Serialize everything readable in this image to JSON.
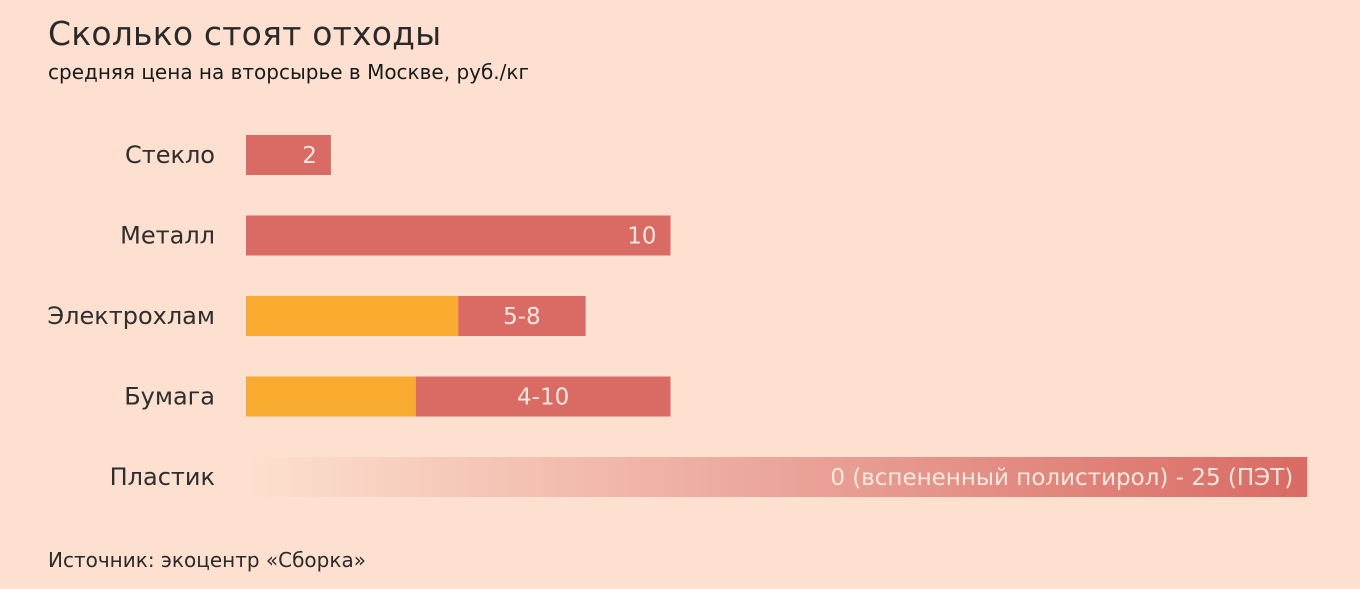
{
  "title": "Сколько стоят отходы",
  "subtitle": "средняя цена на вторсырье в Москве, руб./кг",
  "source": "Источник: экоцентр «Сборка»",
  "colors": {
    "background": "#fde0cf",
    "bar": "#d96a64",
    "bar_min": "#f9ab30"
  },
  "chart_data": {
    "type": "bar",
    "orientation": "horizontal",
    "categories": [
      "Стекло",
      "Металл",
      "Электрохлам",
      "Бумага",
      "Пластик"
    ],
    "series": [
      {
        "name": "",
        "values": [
          {
            "min": 2,
            "max": 2
          },
          {
            "min": 10,
            "max": 10
          },
          {
            "min": 5,
            "max": 8
          },
          {
            "min": 4,
            "max": 10
          },
          {
            "min": 0,
            "max": 25
          }
        ]
      }
    ],
    "data_labels": [
      "2",
      "10",
      "5-8",
      "4-10",
      "0 (вспененный полистирол) - 25 (ПЭТ)"
    ],
    "xlim": [
      0,
      25
    ],
    "grid": false,
    "axes_visible": false
  }
}
